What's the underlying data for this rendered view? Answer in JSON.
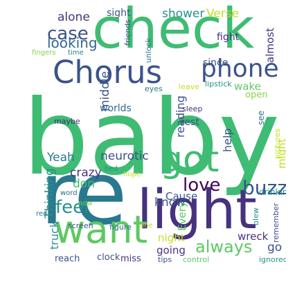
{
  "words": [
    {
      "text": "baby",
      "color": "#3fbc73"
    },
    {
      "text": "re",
      "color": "#2a788e"
    },
    {
      "text": "check",
      "color": "#3fbc73"
    },
    {
      "text": "light",
      "color": "#46327e"
    },
    {
      "text": "Chorus",
      "color": "#3b528b"
    },
    {
      "text": "want",
      "color": "#5ec962"
    },
    {
      "text": "got",
      "color": "#3fbc73"
    },
    {
      "text": "phone",
      "color": "#3b528b"
    },
    {
      "text": "buzz",
      "color": "#3b528b"
    },
    {
      "text": "love",
      "color": "#440154"
    },
    {
      "text": "case",
      "color": "#3b528b"
    },
    {
      "text": "feel",
      "color": "#21918c"
    },
    {
      "text": "always",
      "color": "#5ec962"
    },
    {
      "text": "looking",
      "color": "#31688e"
    },
    {
      "text": "alone",
      "color": "#46327e"
    },
    {
      "text": "shower",
      "color": "#21918c"
    },
    {
      "text": "Verse",
      "color": "#c2df23"
    },
    {
      "text": "sight",
      "color": "#3b528b"
    },
    {
      "text": "fight",
      "color": "#46327e"
    },
    {
      "text": "almost",
      "color": "#46327e"
    },
    {
      "text": "friends",
      "color": "#3b528b"
    },
    {
      "text": "unlock",
      "color": "#2a788e"
    },
    {
      "text": "since",
      "color": "#3b528b"
    },
    {
      "text": "wake",
      "color": "#5ec962"
    },
    {
      "text": "open",
      "color": "#86d549"
    },
    {
      "text": "leave",
      "color": "#c2df23"
    },
    {
      "text": "lipstick",
      "color": "#21918c"
    },
    {
      "text": "eyes",
      "color": "#2a788e"
    },
    {
      "text": "fingers",
      "color": "#86d549"
    },
    {
      "text": "time",
      "color": "#2a788e"
    },
    {
      "text": "middle",
      "color": "#3b528b"
    },
    {
      "text": "reading",
      "color": "#3b528b"
    },
    {
      "text": "worlds",
      "color": "#31688e"
    },
    {
      "text": "rest",
      "color": "#3b528b"
    },
    {
      "text": "sleep",
      "color": "#46327e"
    },
    {
      "text": "see",
      "color": "#2a788e"
    },
    {
      "text": "maybe",
      "color": "#472d7b"
    },
    {
      "text": "help",
      "color": "#3b528b"
    },
    {
      "text": "neurotic",
      "color": "#3b528b"
    },
    {
      "text": "Yeah",
      "color": "#2a788e"
    },
    {
      "text": "Thinking",
      "color": "#21918c"
    },
    {
      "text": "crazy",
      "color": "#46327e"
    },
    {
      "text": "don",
      "color": "#3fbc73"
    },
    {
      "text": "Cause",
      "color": "#3b528b"
    },
    {
      "text": "know",
      "color": "#3b528b"
    },
    {
      "text": "might",
      "color": "#c2df23"
    },
    {
      "text": "pictures",
      "color": "#c2df23"
    },
    {
      "text": "bed",
      "color": "#21918c"
    },
    {
      "text": "hope",
      "color": "#c2df23"
    },
    {
      "text": "word",
      "color": "#31688e"
    },
    {
      "text": "now",
      "color": "#86d549"
    },
    {
      "text": "red",
      "color": "#2a788e"
    },
    {
      "text": "truck",
      "color": "#21918c"
    },
    {
      "text": "night",
      "color": "#c2df23"
    },
    {
      "text": "Every",
      "color": "#5ec962"
    },
    {
      "text": "drinking",
      "color": "#21918c"
    },
    {
      "text": "screen",
      "color": "#3b528b"
    },
    {
      "text": "figure",
      "color": "#31688e"
    },
    {
      "text": "one",
      "color": "#c2df23"
    },
    {
      "text": "going",
      "color": "#46327e"
    },
    {
      "text": "wreck",
      "color": "#46327e"
    },
    {
      "text": "go",
      "color": "#3b528b"
    },
    {
      "text": "blew",
      "color": "#21918c"
    },
    {
      "text": "remember",
      "color": "#3b528b"
    },
    {
      "text": "reach",
      "color": "#3b528b"
    },
    {
      "text": "clock",
      "color": "#3b528b"
    },
    {
      "text": "miss",
      "color": "#46327e"
    },
    {
      "text": "tips",
      "color": "#3b528b"
    },
    {
      "text": "control",
      "color": "#5ec962"
    },
    {
      "text": "ignored",
      "color": "#21918c"
    }
  ]
}
